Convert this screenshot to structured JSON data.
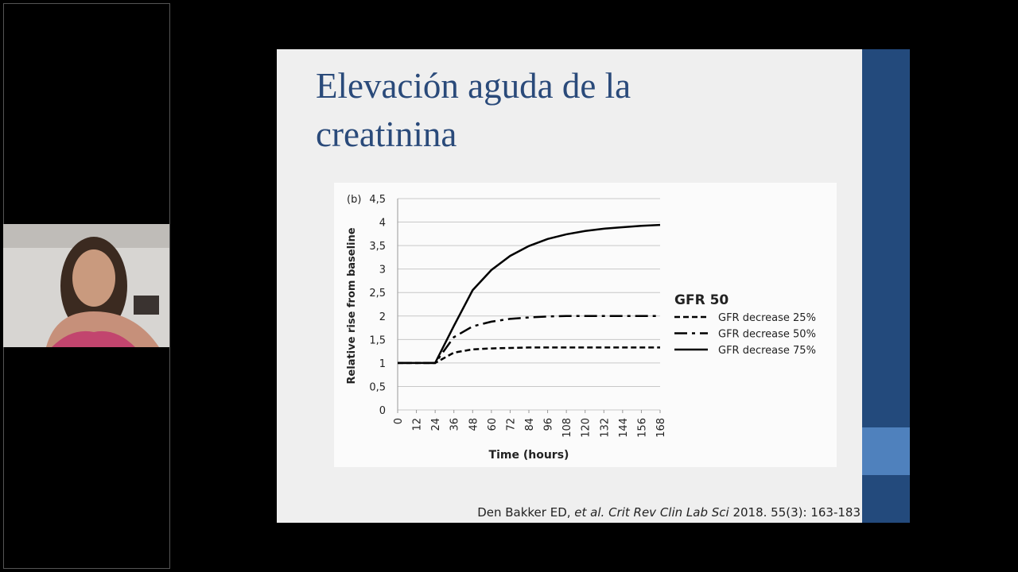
{
  "slide": {
    "title_lines": [
      "Elevación aguda de la",
      "creatinina"
    ],
    "citation": {
      "authors": "Den Bakker ED, ",
      "journal": "et al. Crit Rev Clin Lab Sci",
      "details": " 2018. 55(3): 163-183"
    }
  },
  "chart_data": {
    "type": "line",
    "panel_label": "(b)",
    "x_label": "Time (hours)",
    "y_label": "Relative rise from baseline",
    "legend_title": "GFR 50",
    "legend": "right",
    "grid": true,
    "x": [
      0,
      12,
      24,
      36,
      48,
      60,
      72,
      84,
      96,
      108,
      120,
      132,
      144,
      156,
      168
    ],
    "xlim": [
      0,
      168
    ],
    "xticks": [
      0,
      12,
      24,
      36,
      48,
      60,
      72,
      84,
      96,
      108,
      120,
      132,
      144,
      156,
      168
    ],
    "ylim": [
      0,
      4.5
    ],
    "yticks": [
      0,
      {
        "value": 0.5,
        "label": "0,5"
      },
      1,
      {
        "value": 1.5,
        "label": "1,5"
      },
      2,
      {
        "value": 2.5,
        "label": "2,5"
      },
      3,
      {
        "value": 3.5,
        "label": "3,5"
      },
      4,
      {
        "value": 4.5,
        "label": "4,5"
      }
    ],
    "series": [
      {
        "name": "GFR decrease 25%",
        "color": "#000000",
        "line_style": "dashed",
        "values": [
          1,
          1,
          1,
          1.22,
          1.29,
          1.31,
          1.32,
          1.33,
          1.33,
          1.33,
          1.33,
          1.33,
          1.33,
          1.33,
          1.33
        ]
      },
      {
        "name": "GFR decrease 50%",
        "color": "#000000",
        "line_style": "dashdot",
        "values": [
          1,
          1,
          1,
          1.55,
          1.78,
          1.88,
          1.94,
          1.97,
          1.99,
          2,
          2,
          2,
          2,
          2,
          2
        ]
      },
      {
        "name": "GFR decrease 75%",
        "color": "#000000",
        "line_style": "solid",
        "values": [
          1,
          1,
          1,
          1.79,
          2.55,
          2.98,
          3.28,
          3.49,
          3.64,
          3.74,
          3.81,
          3.86,
          3.89,
          3.92,
          3.94
        ]
      }
    ]
  }
}
